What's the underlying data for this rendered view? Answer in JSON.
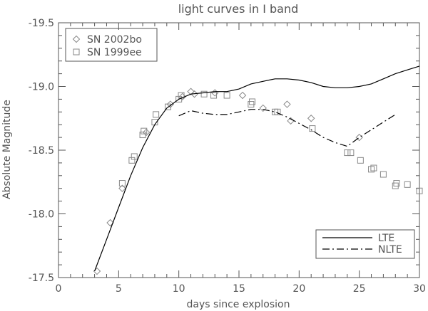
{
  "chart_data": {
    "type": "scatter",
    "title": "light curves in I band",
    "xlabel": "days since explosion",
    "ylabel": "Absolute Magnitude",
    "xlim": [
      0,
      30
    ],
    "ylim": [
      -17.5,
      -19.5
    ],
    "x_ticks": [
      0,
      5,
      10,
      15,
      20,
      25,
      30
    ],
    "y_ticks": [
      -17.5,
      -18.0,
      -18.5,
      -19.0,
      -19.5
    ],
    "x_tick_labels": [
      "0",
      "5",
      "10",
      "15",
      "20",
      "25",
      "30"
    ],
    "y_tick_labels": [
      "-17.5",
      "-18.0",
      "-18.5",
      "-19.0",
      "-19.5"
    ],
    "grid": false,
    "series": [
      {
        "name": "SN 2002bo",
        "kind": "points",
        "marker": "diamond",
        "x": [
          3.2,
          4.3,
          5.3,
          7.3,
          9.3,
          10.3,
          11.0,
          11.3,
          13.0,
          15.3,
          17.0,
          19.0,
          19.3,
          21.0,
          25.0
        ],
        "y": [
          -17.55,
          -17.93,
          -18.2,
          -18.64,
          -18.86,
          -18.92,
          -18.96,
          -18.94,
          -18.95,
          -18.93,
          -18.83,
          -18.86,
          -18.73,
          -18.75,
          -18.6
        ]
      },
      {
        "name": "SN 1999ee",
        "kind": "points",
        "marker": "square",
        "x": [
          5.3,
          6.1,
          6.3,
          7.0,
          7.1,
          8.0,
          8.1,
          9.1,
          10.0,
          10.2,
          12.1,
          12.9,
          14.0,
          16.0,
          16.1,
          18.0,
          18.2,
          21.1,
          24.0,
          24.3,
          25.1,
          26.0,
          26.2,
          27.0,
          28.0,
          28.1,
          29.0,
          30.0
        ],
        "y": [
          -18.24,
          -18.42,
          -18.45,
          -18.62,
          -18.65,
          -18.72,
          -18.78,
          -18.84,
          -18.9,
          -18.93,
          -18.94,
          -18.93,
          -18.93,
          -18.86,
          -18.88,
          -18.8,
          -18.8,
          -18.67,
          -18.48,
          -18.48,
          -18.42,
          -18.35,
          -18.36,
          -18.31,
          -18.22,
          -18.24,
          -18.23,
          -18.18
        ]
      },
      {
        "name": "LTE",
        "kind": "line",
        "dash": "solid",
        "x": [
          3.0,
          4.0,
          5.0,
          6.0,
          7.0,
          8.0,
          9.0,
          10.0,
          11.0,
          12.0,
          13.0,
          14.0,
          15.0,
          16.0,
          17.0,
          18.0,
          19.0,
          20.0,
          21.0,
          22.0,
          23.0,
          24.0,
          25.0,
          26.0,
          27.0,
          28.0,
          29.0,
          30.0
        ],
        "y": [
          -17.55,
          -17.8,
          -18.05,
          -18.3,
          -18.52,
          -18.7,
          -18.83,
          -18.9,
          -18.94,
          -18.95,
          -18.96,
          -18.96,
          -18.98,
          -19.02,
          -19.04,
          -19.06,
          -19.06,
          -19.05,
          -19.03,
          -19.0,
          -18.99,
          -18.99,
          -19.0,
          -19.02,
          -19.06,
          -19.1,
          -19.13,
          -19.16
        ]
      },
      {
        "name": "NLTE",
        "kind": "line",
        "dash": "dash-dot",
        "x": [
          10.0,
          11.0,
          12.0,
          13.0,
          14.0,
          15.0,
          16.0,
          17.0,
          18.0,
          19.0,
          20.0,
          21.0,
          22.0,
          23.0,
          24.0,
          25.0,
          26.0,
          27.0,
          28.0
        ],
        "y": [
          -18.77,
          -18.81,
          -18.79,
          -18.78,
          -18.78,
          -18.8,
          -18.82,
          -18.82,
          -18.8,
          -18.76,
          -18.71,
          -18.66,
          -18.6,
          -18.56,
          -18.53,
          -18.6,
          -18.66,
          -18.72,
          -18.78
        ]
      }
    ],
    "legends": [
      {
        "placement": "top-left",
        "entries": [
          "SN 2002bo",
          "SN 1999ee"
        ]
      },
      {
        "placement": "bottom-right",
        "entries": [
          "LTE",
          "NLTE"
        ]
      }
    ],
    "colors": {
      "axis": "#555555",
      "marks": "#888888",
      "lines": "#000000",
      "text": "#555555"
    }
  }
}
